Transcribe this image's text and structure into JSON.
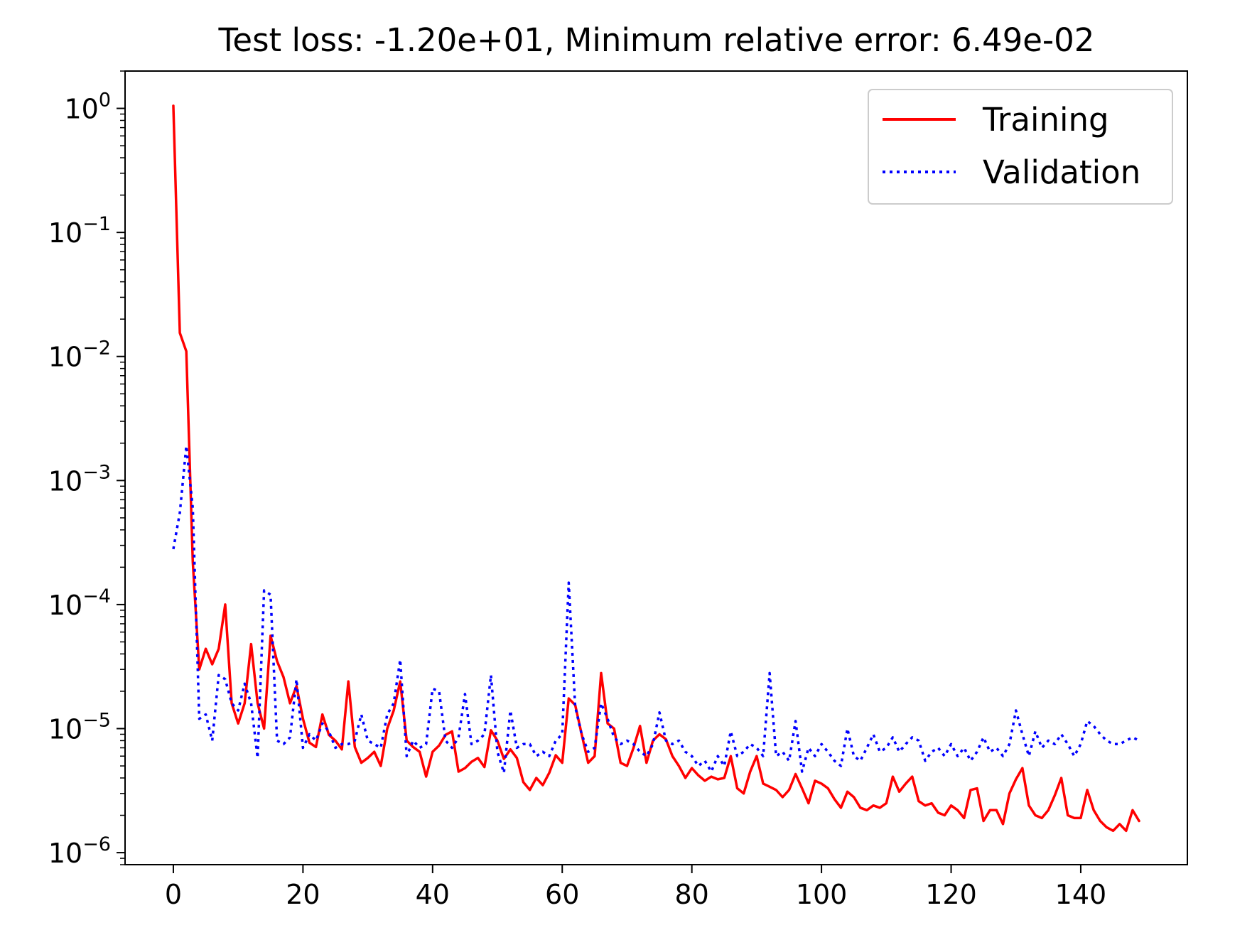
{
  "chart_data": {
    "type": "line",
    "title": "Test loss: -1.20e+01, Minimum relative error: 6.49e-02",
    "xlabel": "",
    "ylabel": "",
    "yscale": "log",
    "xlim": [
      -7.45,
      156.45
    ],
    "ylim": [
      8e-07,
      2.0
    ],
    "x_ticks": [
      0,
      20,
      40,
      60,
      80,
      100,
      120,
      140
    ],
    "y_ticks": [
      {
        "base": "10",
        "exp": "0",
        "value": 1
      },
      {
        "base": "10",
        "exp": "−1",
        "value": 0.1
      },
      {
        "base": "10",
        "exp": "−2",
        "value": 0.01
      },
      {
        "base": "10",
        "exp": "−3",
        "value": 0.001
      },
      {
        "base": "10",
        "exp": "−4",
        "value": 0.0001
      },
      {
        "base": "10",
        "exp": "−5",
        "value": 1e-05
      },
      {
        "base": "10",
        "exp": "−6",
        "value": 1e-06
      }
    ],
    "grid": false,
    "legend_position": "top-right",
    "x": [
      0,
      1,
      2,
      3,
      4,
      5,
      6,
      7,
      8,
      9,
      10,
      11,
      12,
      13,
      14,
      15,
      16,
      17,
      18,
      19,
      20,
      21,
      22,
      23,
      24,
      25,
      26,
      27,
      28,
      29,
      30,
      31,
      32,
      33,
      34,
      35,
      36,
      37,
      38,
      39,
      40,
      41,
      42,
      43,
      44,
      45,
      46,
      47,
      48,
      49,
      50,
      51,
      52,
      53,
      54,
      55,
      56,
      57,
      58,
      59,
      60,
      61,
      62,
      63,
      64,
      65,
      66,
      67,
      68,
      69,
      70,
      71,
      72,
      73,
      74,
      75,
      76,
      77,
      78,
      79,
      80,
      81,
      82,
      83,
      84,
      85,
      86,
      87,
      88,
      89,
      90,
      91,
      92,
      93,
      94,
      95,
      96,
      97,
      98,
      99,
      100,
      101,
      102,
      103,
      104,
      105,
      106,
      107,
      108,
      109,
      110,
      111,
      112,
      113,
      114,
      115,
      116,
      117,
      118,
      119,
      120,
      121,
      122,
      123,
      124,
      125,
      126,
      127,
      128,
      129,
      130,
      131,
      132,
      133,
      134,
      135,
      136,
      137,
      138,
      139,
      140,
      141,
      142,
      143,
      144,
      145,
      146,
      147,
      148,
      149
    ],
    "series": [
      {
        "name": "Training",
        "color": "#ff0000",
        "style": "solid",
        "values": [
          1.05,
          0.0155,
          0.011,
          0.00022,
          3e-05,
          4.4e-05,
          3.3e-05,
          4.4e-05,
          0.0001,
          1.6e-05,
          1.1e-05,
          1.6e-05,
          4.8e-05,
          1.6e-05,
          1e-05,
          5.6e-05,
          3.5e-05,
          2.6e-05,
          1.6e-05,
          2.2e-05,
          1.2e-05,
          7.7e-06,
          7.1e-06,
          1.3e-05,
          8.9e-06,
          8e-06,
          6.8e-06,
          2.4e-05,
          7.1e-06,
          5.3e-06,
          5.8e-06,
          6.5e-06,
          5e-06,
          1e-05,
          1.4e-05,
          2.4e-05,
          8e-06,
          7.1e-06,
          6.5e-06,
          4.1e-06,
          6.5e-06,
          7.3e-06,
          8.9e-06,
          9.5e-06,
          4.5e-06,
          4.8e-06,
          5.4e-06,
          5.8e-06,
          4.9e-06,
          9.7e-06,
          8e-06,
          5.7e-06,
          6.8e-06,
          5.8e-06,
          3.7e-06,
          3.2e-06,
          4e-06,
          3.5e-06,
          4.4e-06,
          6.1e-06,
          5.3e-06,
          1.75e-05,
          1.55e-05,
          9e-06,
          5.3e-06,
          6e-06,
          2.8e-05,
          1.1e-05,
          1e-05,
          5.3e-06,
          5e-06,
          7e-06,
          1.05e-05,
          5.3e-06,
          8e-06,
          9e-06,
          8.2e-06,
          6e-06,
          5e-06,
          4e-06,
          4.8e-06,
          4.2e-06,
          3.8e-06,
          4.1e-06,
          3.9e-06,
          4e-06,
          6e-06,
          3.3e-06,
          3e-06,
          4.5e-06,
          6e-06,
          3.6e-06,
          3.4e-06,
          3.2e-06,
          2.8e-06,
          3.2e-06,
          4.3e-06,
          3.3e-06,
          2.5e-06,
          3.8e-06,
          3.6e-06,
          3.3e-06,
          2.7e-06,
          2.3e-06,
          3.1e-06,
          2.8e-06,
          2.3e-06,
          2.2e-06,
          2.4e-06,
          2.3e-06,
          2.5e-06,
          4.1e-06,
          3.1e-06,
          3.6e-06,
          4.1e-06,
          2.6e-06,
          2.4e-06,
          2.5e-06,
          2.1e-06,
          2e-06,
          2.4e-06,
          2.2e-06,
          1.9e-06,
          3.2e-06,
          3.3e-06,
          1.8e-06,
          2.2e-06,
          2.2e-06,
          1.7e-06,
          3e-06,
          3.9e-06,
          4.8e-06,
          2.4e-06,
          2e-06,
          1.9e-06,
          2.2e-06,
          2.9e-06,
          4e-06,
          2e-06,
          1.9e-06,
          1.9e-06,
          3.2e-06,
          2.2e-06,
          1.8e-06,
          1.6e-06,
          1.5e-06,
          1.7e-06,
          1.5e-06,
          2.2e-06,
          1.8e-06
        ]
      },
      {
        "name": "Validation",
        "color": "#0000ff",
        "style": "dotted",
        "values": [
          0.00028,
          0.00055,
          0.0019,
          0.0006,
          1.2e-05,
          1.3e-05,
          8e-06,
          2.7e-05,
          2.5e-05,
          1.6e-05,
          1.4e-05,
          2.3e-05,
          1.6e-05,
          5.8e-06,
          0.00013,
          0.00012,
          8e-06,
          7.5e-06,
          8.5e-06,
          2.5e-05,
          7e-06,
          9e-06,
          8e-06,
          1.1e-05,
          9.5e-06,
          7e-06,
          7.5e-06,
          7.5e-06,
          8e-06,
          1.3e-05,
          8e-06,
          7.5e-06,
          7e-06,
          1.3e-05,
          1.6e-05,
          3.6e-05,
          6e-06,
          8e-06,
          7e-06,
          7.5e-06,
          2.1e-05,
          2e-05,
          8e-06,
          7e-06,
          8.5e-06,
          1.9e-05,
          7.5e-06,
          8e-06,
          9e-06,
          2.7e-05,
          6.5e-06,
          4.4e-06,
          1.4e-05,
          7e-06,
          7.5e-06,
          7.5e-06,
          6e-06,
          6.5e-06,
          6e-06,
          8e-06,
          9e-06,
          0.00015,
          1.5e-05,
          9e-06,
          6.5e-06,
          7e-06,
          1.6e-05,
          1.2e-05,
          8.5e-06,
          7.5e-06,
          8e-06,
          7.5e-06,
          6.5e-06,
          6e-06,
          7.5e-06,
          1.35e-05,
          8e-06,
          7.5e-06,
          8e-06,
          6.5e-06,
          6e-06,
          5e-06,
          5.5e-06,
          4.5e-06,
          6e-06,
          5e-06,
          9.5e-06,
          6e-06,
          6.5e-06,
          7.5e-06,
          7e-06,
          6e-06,
          2.8e-05,
          6e-06,
          6.5e-06,
          5.5e-06,
          1.15e-05,
          4.5e-06,
          7e-06,
          6e-06,
          7.5e-06,
          6.5e-06,
          5.5e-06,
          5e-06,
          1e-05,
          6e-06,
          5.5e-06,
          7e-06,
          9e-06,
          6.5e-06,
          7e-06,
          8.5e-06,
          6.5e-06,
          7.5e-06,
          8.5e-06,
          8e-06,
          5.5e-06,
          6.5e-06,
          7e-06,
          6e-06,
          7.5e-06,
          6e-06,
          7e-06,
          5.5e-06,
          6.5e-06,
          8.5e-06,
          6.5e-06,
          7e-06,
          6e-06,
          7.5e-06,
          1.4e-05,
          9e-06,
          6e-06,
          9.5e-06,
          7e-06,
          8e-06,
          7.5e-06,
          9e-06,
          7.5e-06,
          6e-06,
          7.5e-06,
          1.15e-05,
          1.05e-05,
          9e-06,
          8e-06,
          7.5e-06,
          7.5e-06,
          8e-06,
          8.5e-06,
          8e-06
        ]
      }
    ]
  }
}
